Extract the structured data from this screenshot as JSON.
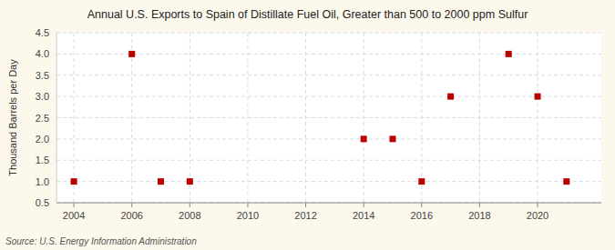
{
  "chart_data": {
    "type": "scatter",
    "title": "Annual U.S. Exports to Spain of Distillate Fuel Oil, Greater than 500 to 2000 ppm Sulfur",
    "y_label": "Thousand Barrels per Day",
    "annotations": [
      "Source: U.S. Energy Information Administration"
    ],
    "x": [
      2004,
      2006,
      2007,
      2008,
      2014,
      2015,
      2016,
      2017,
      2019,
      2020,
      2021
    ],
    "values": [
      1.0,
      4.0,
      1.0,
      1.0,
      2.0,
      2.0,
      1.0,
      3.0,
      4.0,
      3.0,
      1.0
    ],
    "color": "#bb0000",
    "marker": "square",
    "xlim": [
      2003.4,
      2022.2
    ],
    "ylim": [
      0.5,
      4.5
    ],
    "xticks": [
      2004,
      2006,
      2008,
      2010,
      2012,
      2014,
      2016,
      2018,
      2020
    ],
    "yticks": [
      0.5,
      {
        "value": 1.0,
        "label": "1.0"
      },
      1.5,
      {
        "value": 2.0,
        "label": "2.0"
      },
      2.5,
      {
        "value": 3.0,
        "label": "3.0"
      },
      3.5,
      {
        "value": 4.0,
        "label": "4.0"
      },
      4.5
    ],
    "grid": true
  }
}
